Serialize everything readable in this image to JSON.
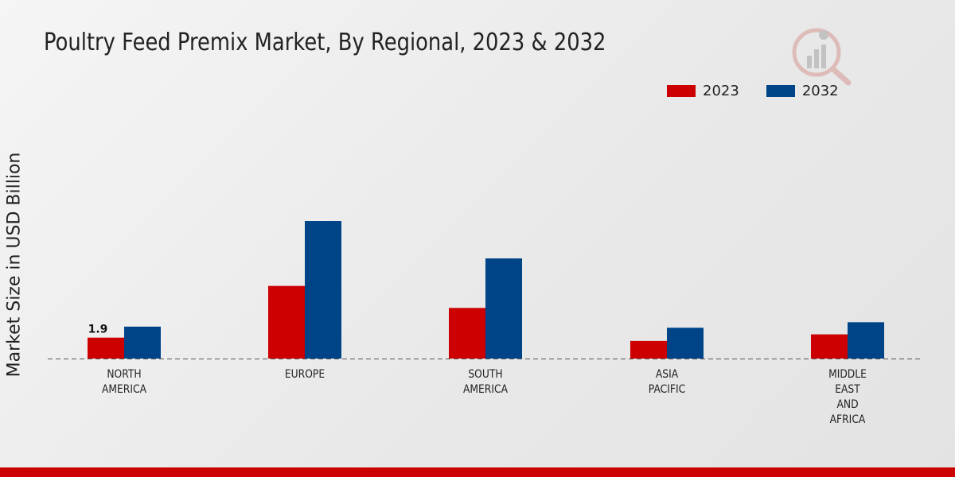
{
  "colors": {
    "series_2023": "#cc0000",
    "series_2032": "#004488",
    "bottom_bar": "#cc0000",
    "baseline": "#555555"
  },
  "logo_icon": "chart-magnifier-logo",
  "chart_data": {
    "type": "bar",
    "title": "Poultry Feed Premix Market, By Regional, 2023 & 2032",
    "xlabel": "",
    "ylabel": "Market Size in USD Billion",
    "ylim": [
      0,
      12.5
    ],
    "grid": false,
    "legend_position": "top-right",
    "categories": [
      [
        "NORTH",
        "AMERICA"
      ],
      [
        "EUROPE"
      ],
      [
        "SOUTH",
        "AMERICA"
      ],
      [
        "ASIA",
        "PACIFIC"
      ],
      [
        "MIDDLE",
        "EAST",
        "AND",
        "AFRICA"
      ]
    ],
    "series": [
      {
        "name": "2023",
        "values": [
          1.9,
          6.6,
          4.6,
          1.6,
          2.2
        ]
      },
      {
        "name": "2032",
        "values": [
          2.9,
          12.5,
          9.1,
          2.8,
          3.3
        ]
      }
    ],
    "data_labels": [
      {
        "series": 0,
        "index": 0,
        "text": "1.9"
      }
    ]
  }
}
